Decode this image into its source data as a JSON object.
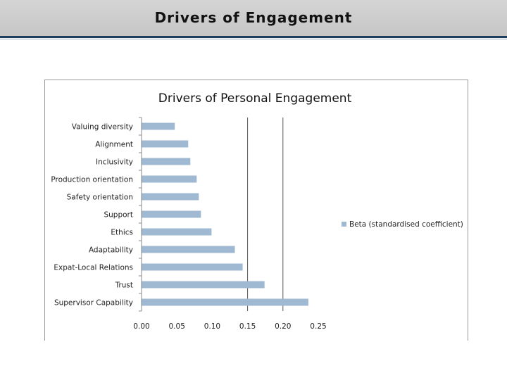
{
  "slide": {
    "title": "Drivers of Engagement"
  },
  "chart_data": {
    "type": "bar",
    "orientation": "horizontal",
    "title": "Drivers of Personal Engagement",
    "categories": [
      "Valuing diversity",
      "Alignment",
      "Inclusivity",
      "Production orientation",
      "Safety orientation",
      "Support",
      "Ethics",
      "Adaptability",
      "Expat-Local Relations",
      "Trust",
      "Supervisor Capability"
    ],
    "series": [
      {
        "name": "Beta (standardised coefficient)",
        "color": "#9fb9d2",
        "values": [
          0.047,
          0.066,
          0.069,
          0.078,
          0.081,
          0.084,
          0.099,
          0.132,
          0.143,
          0.174,
          0.236
        ]
      }
    ],
    "xlim": [
      0,
      0.25
    ],
    "xticks": [
      "0.00",
      "0.05",
      "0.10",
      "0.15",
      "0.20",
      "0.25"
    ],
    "gridlines": [
      0.15,
      0.2
    ],
    "legend": "right"
  }
}
